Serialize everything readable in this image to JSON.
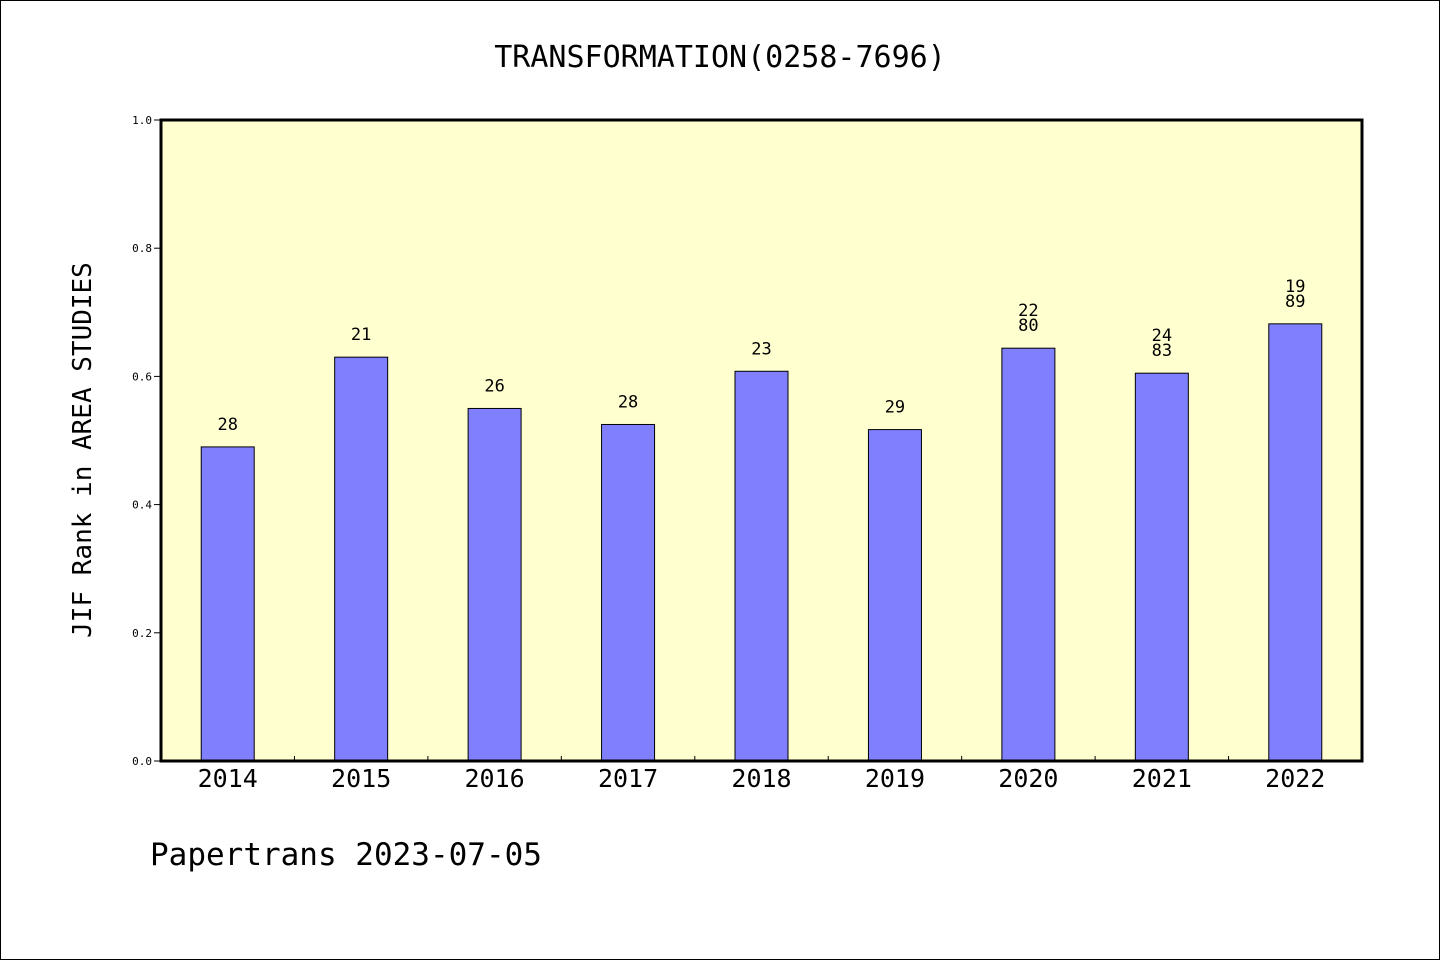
{
  "chart_data": {
    "type": "bar",
    "title": "TRANSFORMATION(0258-7696)",
    "xlabel": "",
    "ylabel": "JIF Rank in AREA STUDIES",
    "ylim": [
      0,
      1.0
    ],
    "yticks": [
      "0.0",
      "0.2",
      "0.4",
      "0.6",
      "0.8",
      "1.0"
    ],
    "grid": false,
    "categories": [
      "2014",
      "2015",
      "2016",
      "2017",
      "2018",
      "2019",
      "2020",
      "2021",
      "2022"
    ],
    "values": [
      0.49,
      0.63,
      0.55,
      0.525,
      0.608,
      0.517,
      0.644,
      0.605,
      0.682
    ],
    "labels": [
      [
        "28"
      ],
      [
        "21"
      ],
      [
        "26"
      ],
      [
        "28"
      ],
      [
        "23"
      ],
      [
        "29"
      ],
      [
        "22",
        "80"
      ],
      [
        "24",
        "83"
      ],
      [
        "19",
        "89"
      ]
    ],
    "colors": {
      "plot_background": "#ffffd0",
      "bar_fill": "#8080ff",
      "bar_stroke": "#000000"
    }
  },
  "footer": {
    "text": "Papertrans 2023-07-05"
  }
}
